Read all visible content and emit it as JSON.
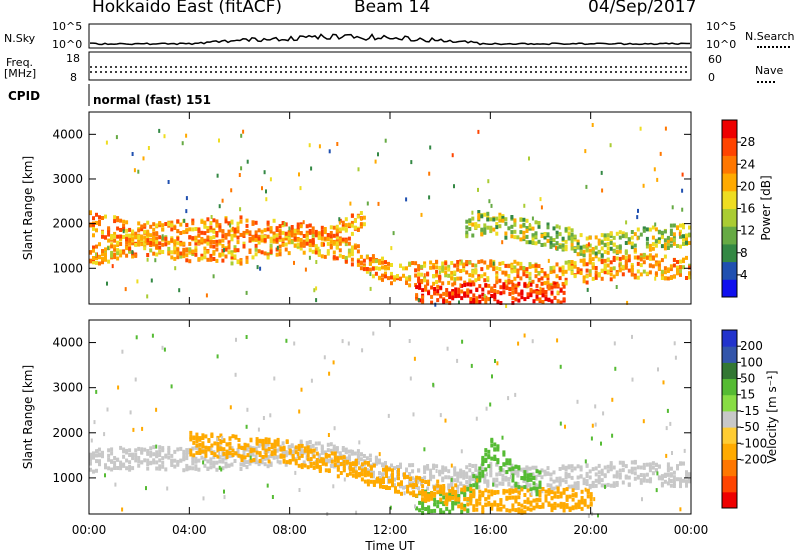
{
  "header": {
    "title": "Hokkaido East (fitACF)",
    "beam": "Beam 14",
    "date": "04/Sep/2017"
  },
  "strip": {
    "nsky_label": "N.Sky",
    "nsky_ticks_left": [
      "10^5",
      "10^0"
    ],
    "nsearch_label": "N.Search",
    "nsearch_ticks_right": [
      "10^5",
      "10^0"
    ],
    "freq_label": "Freq.",
    "freq_unit": "[MHz]",
    "freq_ticks": [
      "18",
      "8"
    ],
    "nave_label": "Nave",
    "nave_ticks": [
      "60",
      "0"
    ],
    "cpid_label": "CPID",
    "cpid_value": "normal (fast) 151"
  },
  "chart_data": [
    {
      "type": "heatmap",
      "ylabel": "Slant Range [km]",
      "xlabel": "",
      "ylim": [
        200,
        4500
      ],
      "yticks": [
        "1000",
        "2000",
        "3000",
        "4000"
      ],
      "xticks": [
        "00:00",
        "04:00",
        "08:00",
        "12:00",
        "16:00",
        "20:00",
        "00:00"
      ],
      "xlim_hours": [
        0,
        24
      ],
      "colorbar": {
        "label": "Power [dB]",
        "ticks": [
          "4",
          "8",
          "12",
          "16",
          "20",
          "24",
          "28"
        ],
        "range": [
          0,
          30
        ],
        "colors": [
          "#1010ee",
          "#2050b0",
          "#338844",
          "#66aa44",
          "#aacc33",
          "#eedd22",
          "#ffaa00",
          "#ff7700",
          "#ff4400",
          "#ee0000"
        ]
      },
      "bands": [
        {
          "name": "lower-main",
          "t": [
            0,
            2,
            4,
            6,
            8,
            10,
            12,
            14,
            16,
            18,
            20,
            22,
            24
          ],
          "range_km": [
            1300,
            1600,
            1450,
            1400,
            1650,
            1500,
            900,
            950,
            1000,
            850,
            1000,
            1100,
            1050
          ],
          "level": 20
        },
        {
          "name": "upper-main",
          "t": [
            0,
            2,
            4,
            6,
            8,
            10,
            11
          ],
          "range_km": [
            2050,
            1800,
            1850,
            1950,
            1800,
            1850,
            2150
          ],
          "level": 21
        },
        {
          "name": "near-range",
          "t": [
            13,
            14,
            15,
            16,
            17,
            18,
            19
          ],
          "range_km": [
            450,
            400,
            500,
            420,
            480,
            400,
            450
          ],
          "level": 27
        },
        {
          "name": "evening",
          "t": [
            15,
            16,
            17,
            18,
            19,
            20,
            22,
            24
          ],
          "range_km": [
            2000,
            2100,
            1900,
            1800,
            1700,
            1500,
            1700,
            1800
          ],
          "level": 14
        }
      ]
    },
    {
      "type": "heatmap",
      "ylabel": "Slant Range [km]",
      "xlabel": "Time UT",
      "ylim": [
        200,
        4500
      ],
      "yticks": [
        "1000",
        "2000",
        "3000",
        "4000"
      ],
      "xticks": [
        "00:00",
        "04:00",
        "08:00",
        "12:00",
        "16:00",
        "20:00",
        "00:00"
      ],
      "xlim_hours": [
        0,
        24
      ],
      "colorbar": {
        "label": "Velocity [m s⁻¹]",
        "ticks": [
          "200",
          "100",
          "50",
          "15",
          "-15",
          "-50",
          "-100",
          "-200"
        ],
        "colors": [
          "#2233cc",
          "#3355aa",
          "#337733",
          "#55bb33",
          "#88dd44",
          "#c8c8c8",
          "#ffcc33",
          "#ffaa00",
          "#ff7700",
          "#ff4400",
          "#ee0000"
        ]
      },
      "bands": [
        {
          "name": "ground-scatter",
          "t": [
            0,
            2,
            4,
            6,
            8,
            10,
            12,
            14,
            16,
            18,
            20,
            22,
            24
          ],
          "range_km": [
            1400,
            1500,
            1450,
            1500,
            1600,
            1550,
            1100,
            1050,
            1100,
            1000,
            1100,
            1150,
            1100
          ],
          "level": 0
        },
        {
          "name": "positive-velocity",
          "t": [
            13,
            14,
            15,
            16,
            17,
            18
          ],
          "range_km": [
            500,
            450,
            500,
            1700,
            1100,
            900
          ],
          "level": 35
        },
        {
          "name": "negative-velocity",
          "t": [
            4,
            6,
            8,
            14,
            16,
            20
          ],
          "range_km": [
            1800,
            1700,
            1600,
            700,
            500,
            600
          ],
          "level": -40
        }
      ]
    }
  ]
}
